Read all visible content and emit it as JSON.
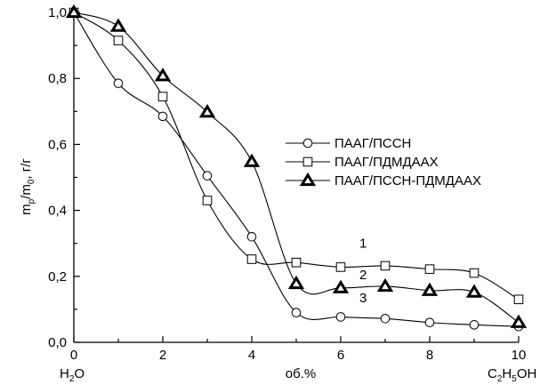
{
  "chart_data": {
    "type": "line",
    "title": "",
    "xlabel": "об.%",
    "ylabel": "m_p/m_0, г/г",
    "x_end_labels": {
      "left": "H2O",
      "right": "C2H5OH"
    },
    "xlim": [
      0,
      10
    ],
    "ylim": [
      0,
      1.0
    ],
    "x_ticks": [
      0,
      2,
      4,
      6,
      8,
      10
    ],
    "y_ticks": [
      "0,0",
      "0,2",
      "0,4",
      "0,6",
      "0,8",
      "1,0"
    ],
    "grid": false,
    "legend_position": "center-right",
    "series": [
      {
        "name": "ПААГ/ПССН",
        "marker": "circle",
        "curve_label": "3",
        "x": [
          0,
          1,
          2,
          3,
          4,
          5,
          6,
          7,
          8,
          9,
          10
        ],
        "y": [
          1.0,
          0.785,
          0.685,
          0.505,
          0.32,
          0.09,
          0.077,
          0.072,
          0.06,
          0.053,
          0.048
        ]
      },
      {
        "name": "ПААГ/ПДМДААХ",
        "marker": "square",
        "curve_label": "1",
        "x": [
          0,
          1,
          2,
          3,
          4,
          5,
          6,
          7,
          8,
          9,
          10
        ],
        "y": [
          1.0,
          0.915,
          0.745,
          0.43,
          0.252,
          0.242,
          0.228,
          0.232,
          0.222,
          0.21,
          0.13
        ]
      },
      {
        "name": "ПААГ/ПССН-ПДМДААХ",
        "marker": "triangle",
        "curve_label": "2",
        "x": [
          0,
          1,
          2,
          3,
          4,
          5,
          6,
          7,
          8,
          9,
          10
        ],
        "y": [
          1.0,
          0.958,
          0.808,
          0.698,
          0.548,
          0.178,
          0.165,
          0.17,
          0.157,
          0.152,
          0.06
        ]
      }
    ]
  },
  "labels": {
    "ylabel_main": "m",
    "ylabel_sub1": "p",
    "ylabel_mid": "/m",
    "ylabel_sub2": "0",
    "ylabel_tail": ", г/г",
    "x_left_main1": "H",
    "x_left_sub": "2",
    "x_left_main2": "O",
    "x_right_c": "C",
    "x_right_sub1": "2",
    "x_right_h": "H",
    "x_right_sub2": "5",
    "x_right_oh": "OH"
  }
}
